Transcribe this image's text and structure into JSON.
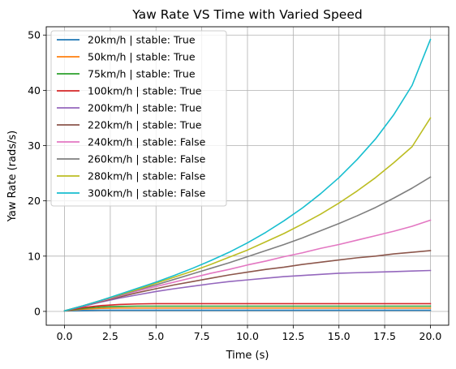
{
  "chart_data": {
    "type": "line",
    "title": "Yaw Rate VS Time with Varied Speed",
    "xlabel": "Time (s)",
    "ylabel": "Yaw Rate (rads/s)",
    "xlim": [
      -1.0,
      21.0
    ],
    "ylim": [
      -2.5,
      51.5
    ],
    "xticks": [
      0.0,
      2.5,
      5.0,
      7.5,
      10.0,
      12.5,
      15.0,
      17.5,
      20.0
    ],
    "xtick_labels": [
      "0.0",
      "2.5",
      "5.0",
      "7.5",
      "10.0",
      "12.5",
      "15.0",
      "17.5",
      "20.0"
    ],
    "yticks": [
      0,
      10,
      20,
      30,
      40,
      50
    ],
    "ytick_labels": [
      "0",
      "10",
      "20",
      "30",
      "40",
      "50"
    ],
    "grid": true,
    "legend_position": "top-left",
    "x": [
      0,
      1,
      2,
      3,
      4,
      5,
      6,
      7,
      8,
      9,
      10,
      11,
      12,
      13,
      14,
      15,
      16,
      17,
      18,
      19,
      20
    ],
    "series": [
      {
        "name": "20km/h | stable: True",
        "color": "#1f77b4",
        "values": [
          0.1,
          0.17,
          0.2,
          0.2,
          0.2,
          0.2,
          0.2,
          0.2,
          0.2,
          0.2,
          0.2,
          0.2,
          0.2,
          0.2,
          0.2,
          0.2,
          0.2,
          0.2,
          0.2,
          0.2,
          0.2
        ]
      },
      {
        "name": "50km/h | stable: True",
        "color": "#ff7f0e",
        "values": [
          0.1,
          0.4,
          0.55,
          0.6,
          0.6,
          0.6,
          0.6,
          0.6,
          0.6,
          0.6,
          0.6,
          0.6,
          0.6,
          0.6,
          0.6,
          0.6,
          0.6,
          0.6,
          0.6,
          0.6,
          0.6
        ]
      },
      {
        "name": "75km/h | stable: True",
        "color": "#2ca02c",
        "values": [
          0.1,
          0.55,
          0.8,
          0.9,
          0.95,
          0.95,
          0.95,
          0.95,
          0.95,
          0.95,
          0.95,
          0.95,
          0.95,
          0.95,
          0.95,
          0.95,
          0.95,
          0.95,
          0.95,
          0.95,
          0.95
        ]
      },
      {
        "name": "100km/h | stable: True",
        "color": "#d62728",
        "values": [
          0.1,
          0.7,
          1.05,
          1.25,
          1.35,
          1.4,
          1.4,
          1.4,
          1.4,
          1.4,
          1.4,
          1.4,
          1.4,
          1.4,
          1.4,
          1.4,
          1.4,
          1.4,
          1.4,
          1.4,
          1.4
        ]
      },
      {
        "name": "200km/h | stable: True",
        "color": "#9467bd",
        "values": [
          0.1,
          0.9,
          1.7,
          2.4,
          3.0,
          3.6,
          4.1,
          4.55,
          5.0,
          5.4,
          5.7,
          6.0,
          6.3,
          6.5,
          6.7,
          6.9,
          7.0,
          7.1,
          7.2,
          7.3,
          7.4
        ]
      },
      {
        "name": "220km/h | stable: True",
        "color": "#8c564b",
        "values": [
          0.1,
          1.0,
          1.8,
          2.6,
          3.4,
          4.1,
          4.8,
          5.4,
          6.0,
          6.6,
          7.1,
          7.6,
          8.0,
          8.5,
          8.9,
          9.3,
          9.7,
          10.0,
          10.4,
          10.7,
          11.0
        ]
      },
      {
        "name": "240km/h | stable: False",
        "color": "#e377c2",
        "values": [
          0.1,
          1.0,
          1.9,
          2.8,
          3.7,
          4.5,
          5.3,
          6.1,
          6.9,
          7.6,
          8.4,
          9.1,
          9.9,
          10.6,
          11.4,
          12.1,
          12.9,
          13.7,
          14.5,
          15.4,
          16.5
        ]
      },
      {
        "name": "260km/h | stable: False",
        "color": "#7f7f7f",
        "values": [
          0.1,
          1.0,
          2.0,
          2.9,
          3.9,
          4.8,
          5.8,
          6.8,
          7.8,
          8.8,
          9.9,
          11.0,
          12.1,
          13.3,
          14.6,
          15.9,
          17.3,
          18.8,
          20.5,
          22.3,
          24.3
        ]
      },
      {
        "name": "280km/h | stable: False",
        "color": "#bcbd22",
        "values": [
          0.1,
          1.0,
          2.0,
          3.0,
          4.0,
          5.1,
          6.2,
          7.3,
          8.5,
          9.8,
          11.1,
          12.6,
          14.1,
          15.8,
          17.6,
          19.6,
          21.8,
          24.2,
          26.9,
          29.8,
          35.0
        ]
      },
      {
        "name": "300km/h | stable: False",
        "color": "#17becf",
        "values": [
          0.1,
          1.0,
          2.0,
          3.1,
          4.2,
          5.3,
          6.5,
          7.8,
          9.2,
          10.7,
          12.4,
          14.3,
          16.4,
          18.7,
          21.3,
          24.2,
          27.5,
          31.2,
          35.6,
          40.9,
          49.2
        ]
      }
    ]
  }
}
